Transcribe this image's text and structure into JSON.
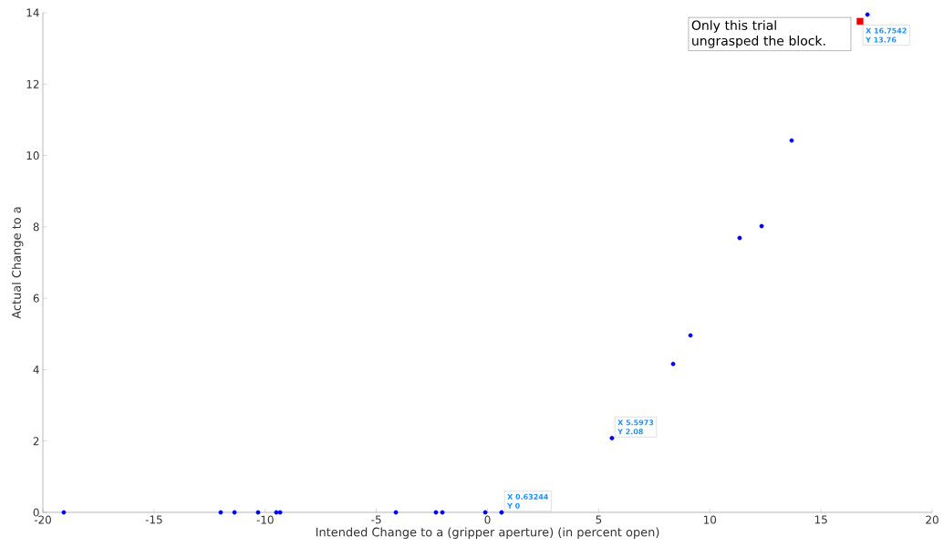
{
  "chart_data": {
    "type": "scatter",
    "xlabel": "Intended Change to a (gripper aperture) (in percent open)",
    "ylabel": "Actual Change to a",
    "xlim": [
      -20,
      20
    ],
    "ylim": [
      0,
      14
    ],
    "xticks": [
      -20,
      -15,
      -10,
      -5,
      0,
      5,
      10,
      15,
      20
    ],
    "yticks": [
      0,
      2,
      4,
      6,
      8,
      10,
      12,
      14
    ],
    "grid": false,
    "series": [
      {
        "color": "#0000ee",
        "marker": "circle",
        "x": [
          -19.06,
          -12.0,
          -11.38,
          -10.32,
          -9.5,
          -9.33,
          -4.12,
          -2.32,
          -2.03,
          -0.1,
          0.63244,
          5.5973,
          8.35,
          9.13,
          11.34,
          12.33,
          13.68,
          17.09
        ],
        "values": [
          0,
          0,
          0,
          0,
          0,
          0,
          0,
          0,
          0,
          0,
          0,
          2.08,
          4.16,
          4.96,
          7.69,
          8.02,
          10.42,
          13.95
        ]
      },
      {
        "color": "#ee0000",
        "marker": "square",
        "x": [
          16.7542
        ],
        "values": [
          13.76
        ]
      }
    ],
    "annotations": [
      {
        "text": "X 0.63244",
        "x": 0.63244,
        "y": 0
      },
      {
        "text": "Y 0",
        "x": 0.63244,
        "y": 0
      },
      {
        "text": "X 5.5973",
        "x": 5.5973,
        "y": 2.08
      },
      {
        "text": "Y 2.08",
        "x": 5.5973,
        "y": 2.08
      },
      {
        "text": "X 16.7542",
        "x": 16.7542,
        "y": 13.76
      },
      {
        "text": "Y 13.76",
        "x": 16.7542,
        "y": 13.76
      },
      "Only this trial ungrasped the block."
    ]
  }
}
